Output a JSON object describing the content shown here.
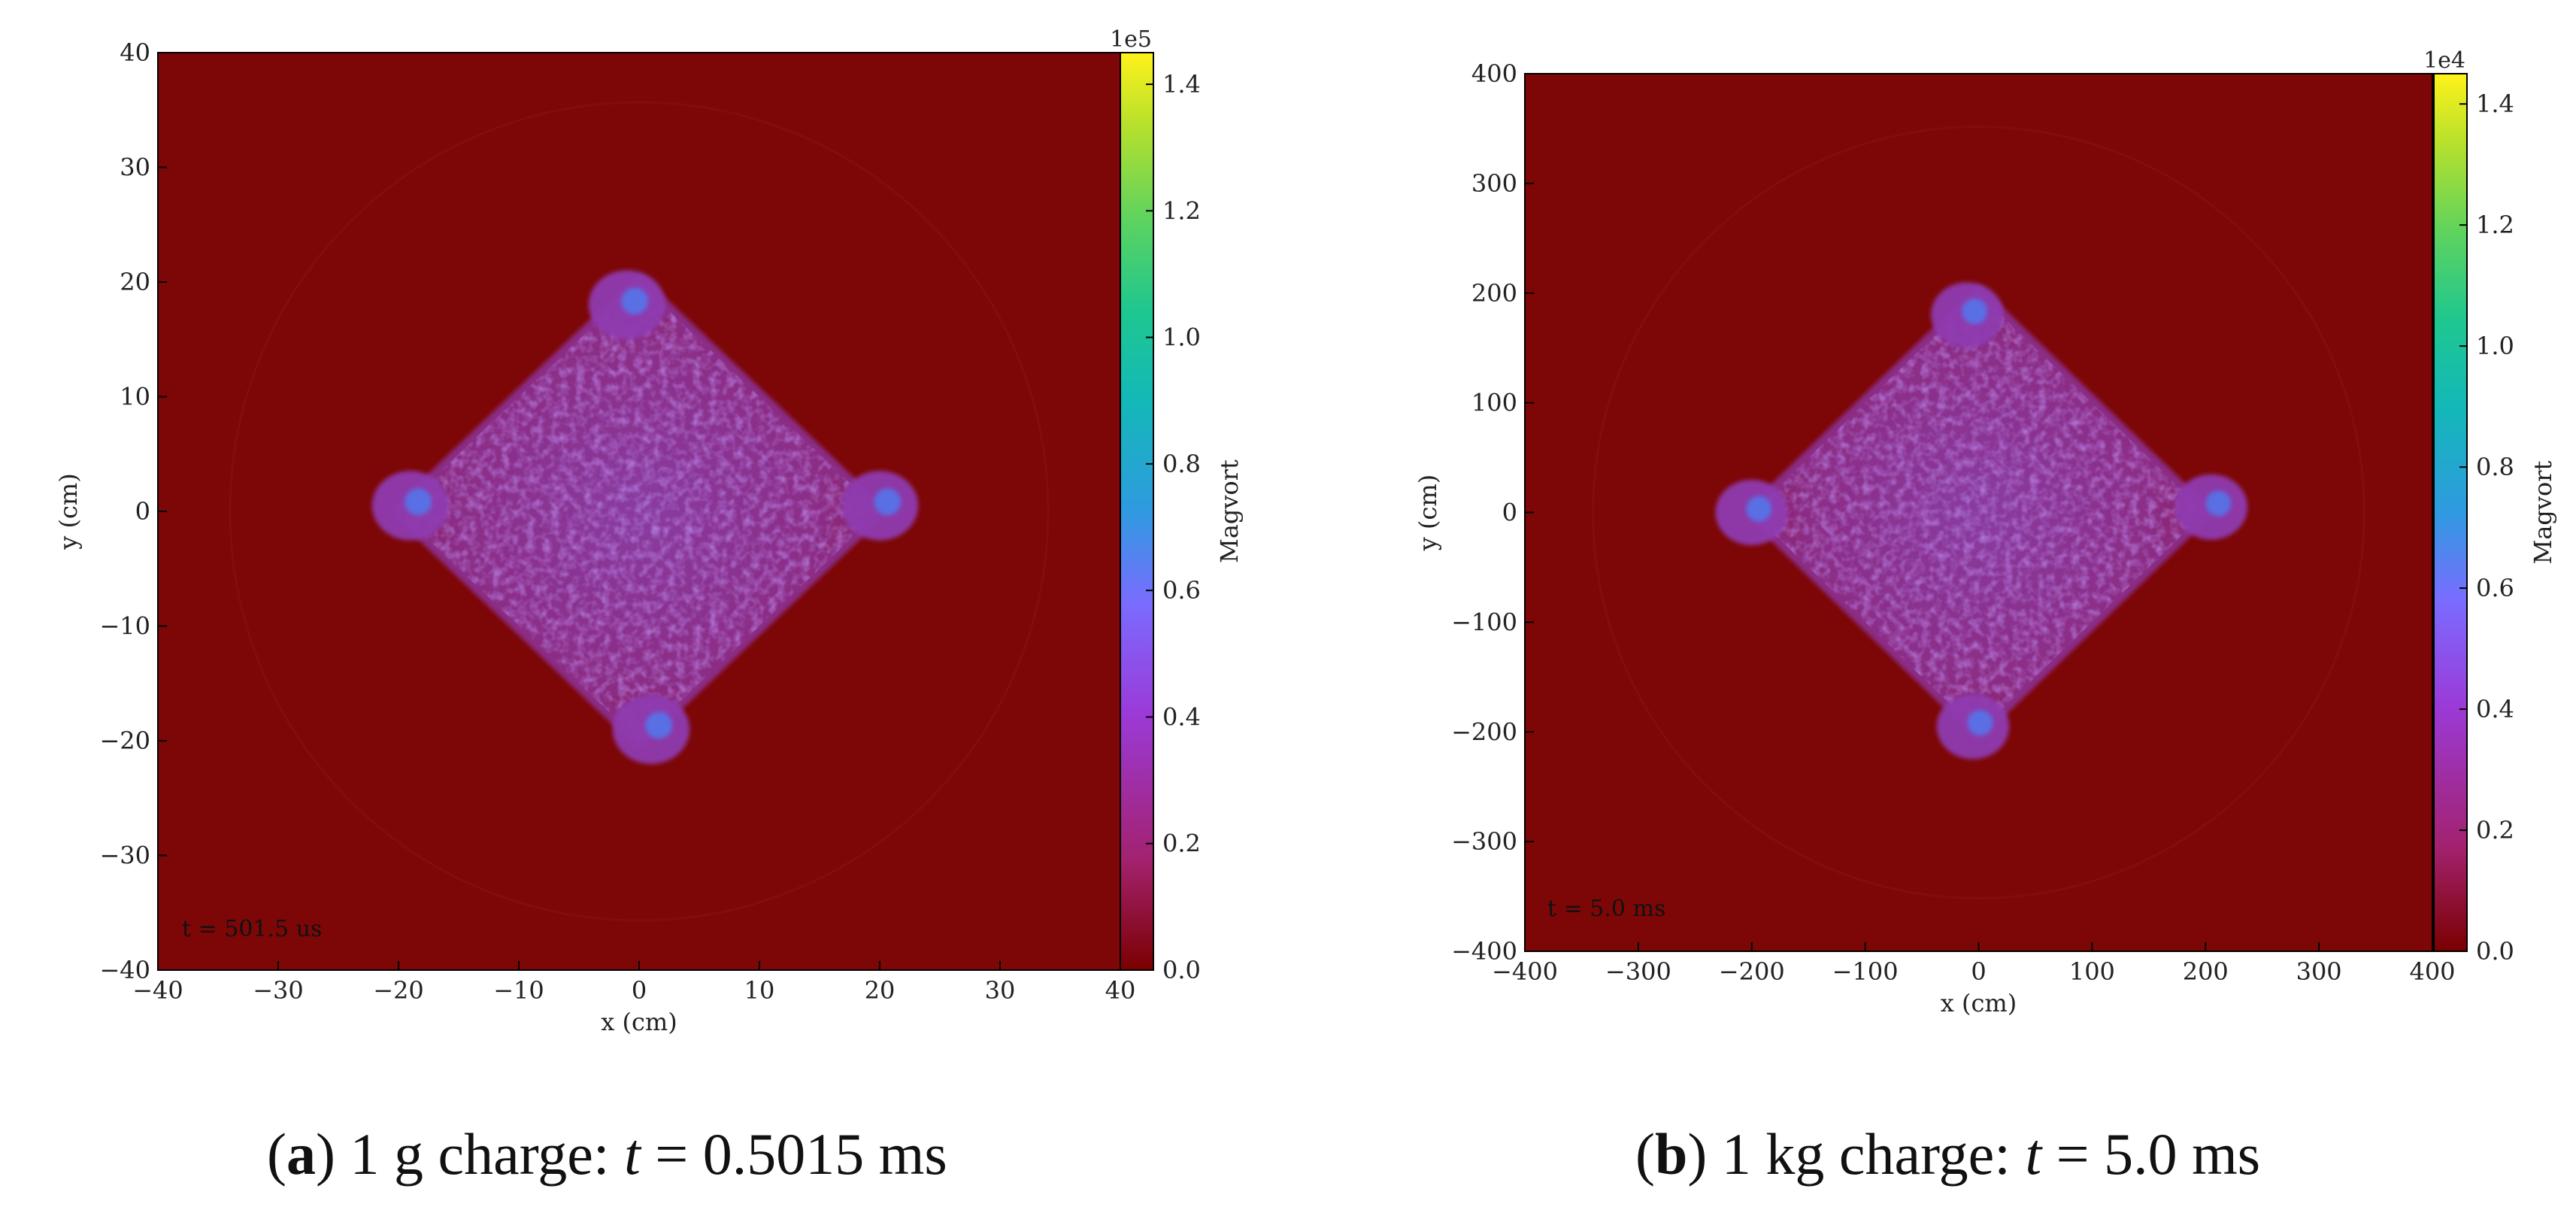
{
  "chart_data": [
    {
      "type": "heatmap",
      "panel": "a",
      "xlabel": "x  (cm)",
      "ylabel": "y  (cm)",
      "xlim": [
        -40,
        40
      ],
      "ylim": [
        -40,
        40
      ],
      "xticks": [
        -40,
        -30,
        -20,
        -10,
        0,
        10,
        20,
        30,
        40
      ],
      "yticks": [
        -40,
        -30,
        -20,
        -10,
        0,
        10,
        20,
        30,
        40
      ],
      "xtick_labels": [
        "−40",
        "−30",
        "−20",
        "−10",
        "0",
        "10",
        "20",
        "30",
        "40"
      ],
      "ytick_labels": [
        "−40",
        "−30",
        "−20",
        "−10",
        "0",
        "10",
        "20",
        "30",
        "40"
      ],
      "annotation": "t = 501.5 us",
      "colorbar": {
        "label": "Magvort",
        "exponent": "1e5",
        "range": [
          0.0,
          1.45
        ],
        "ticks": [
          0.0,
          0.2,
          0.4,
          0.6,
          0.8,
          1.0,
          1.2,
          1.4
        ],
        "tick_labels": [
          "0.0",
          "0.2",
          "0.4",
          "0.6",
          "0.8",
          "1.0",
          "1.2",
          "1.4"
        ]
      },
      "region": {
        "shape": "diamond",
        "center": [
          0,
          0
        ],
        "half_width": 20,
        "value_level": 0.35
      },
      "lobes": [
        {
          "name": "top",
          "x": -1,
          "y": 18
        },
        {
          "name": "bottom",
          "x": 1,
          "y": -19
        },
        {
          "name": "left",
          "x": -19,
          "y": 0.5
        },
        {
          "name": "right",
          "x": 20,
          "y": 0.5
        }
      ],
      "background_value": 0.0
    },
    {
      "type": "heatmap",
      "panel": "b",
      "xlabel": "x  (cm)",
      "ylabel": "y  (cm)",
      "xlim": [
        -400,
        400
      ],
      "ylim": [
        -400,
        400
      ],
      "xticks": [
        -400,
        -300,
        -200,
        -100,
        0,
        100,
        200,
        300,
        400
      ],
      "yticks": [
        -400,
        -300,
        -200,
        -100,
        0,
        100,
        200,
        300,
        400
      ],
      "xtick_labels": [
        "−400",
        "−300",
        "−200",
        "−100",
        "0",
        "100",
        "200",
        "300",
        "400"
      ],
      "ytick_labels": [
        "−400",
        "−300",
        "−200",
        "−100",
        "0",
        "100",
        "200",
        "300",
        "400"
      ],
      "annotation": "t = 5.0 ms",
      "colorbar": {
        "label": "Magvort",
        "exponent": "1e4",
        "range": [
          0.0,
          1.45
        ],
        "ticks": [
          0.0,
          0.2,
          0.4,
          0.6,
          0.8,
          1.0,
          1.2,
          1.4
        ],
        "tick_labels": [
          "0.0",
          "0.2",
          "0.4",
          "0.6",
          "0.8",
          "1.0",
          "1.2",
          "1.4"
        ]
      },
      "region": {
        "shape": "diamond",
        "center": [
          0,
          0
        ],
        "half_width": 200,
        "value_level": 0.35
      },
      "lobes": [
        {
          "name": "top",
          "x": -10,
          "y": 180
        },
        {
          "name": "bottom",
          "x": -5,
          "y": -195
        },
        {
          "name": "left",
          "x": -200,
          "y": 0
        },
        {
          "name": "right",
          "x": 205,
          "y": 5
        }
      ],
      "background_value": 0.0
    }
  ],
  "captions": {
    "a": {
      "label": "a",
      "pre": "1 g charge: ",
      "var": "t",
      "post": " = 0.5015 ms"
    },
    "b": {
      "label": "b",
      "pre": "1 kg charge:  ",
      "var": "t",
      "post": " = 5.0 ms"
    }
  },
  "colors": {
    "background_field": "#7d0707",
    "region_fill": "#8c2f8c",
    "colormap": [
      "#7a0000",
      "#a3226f",
      "#9b3ad8",
      "#7a6cff",
      "#2f9ae0",
      "#13b8b8",
      "#1fc78f",
      "#5fd35e",
      "#b6e02c",
      "#fff21a"
    ]
  }
}
